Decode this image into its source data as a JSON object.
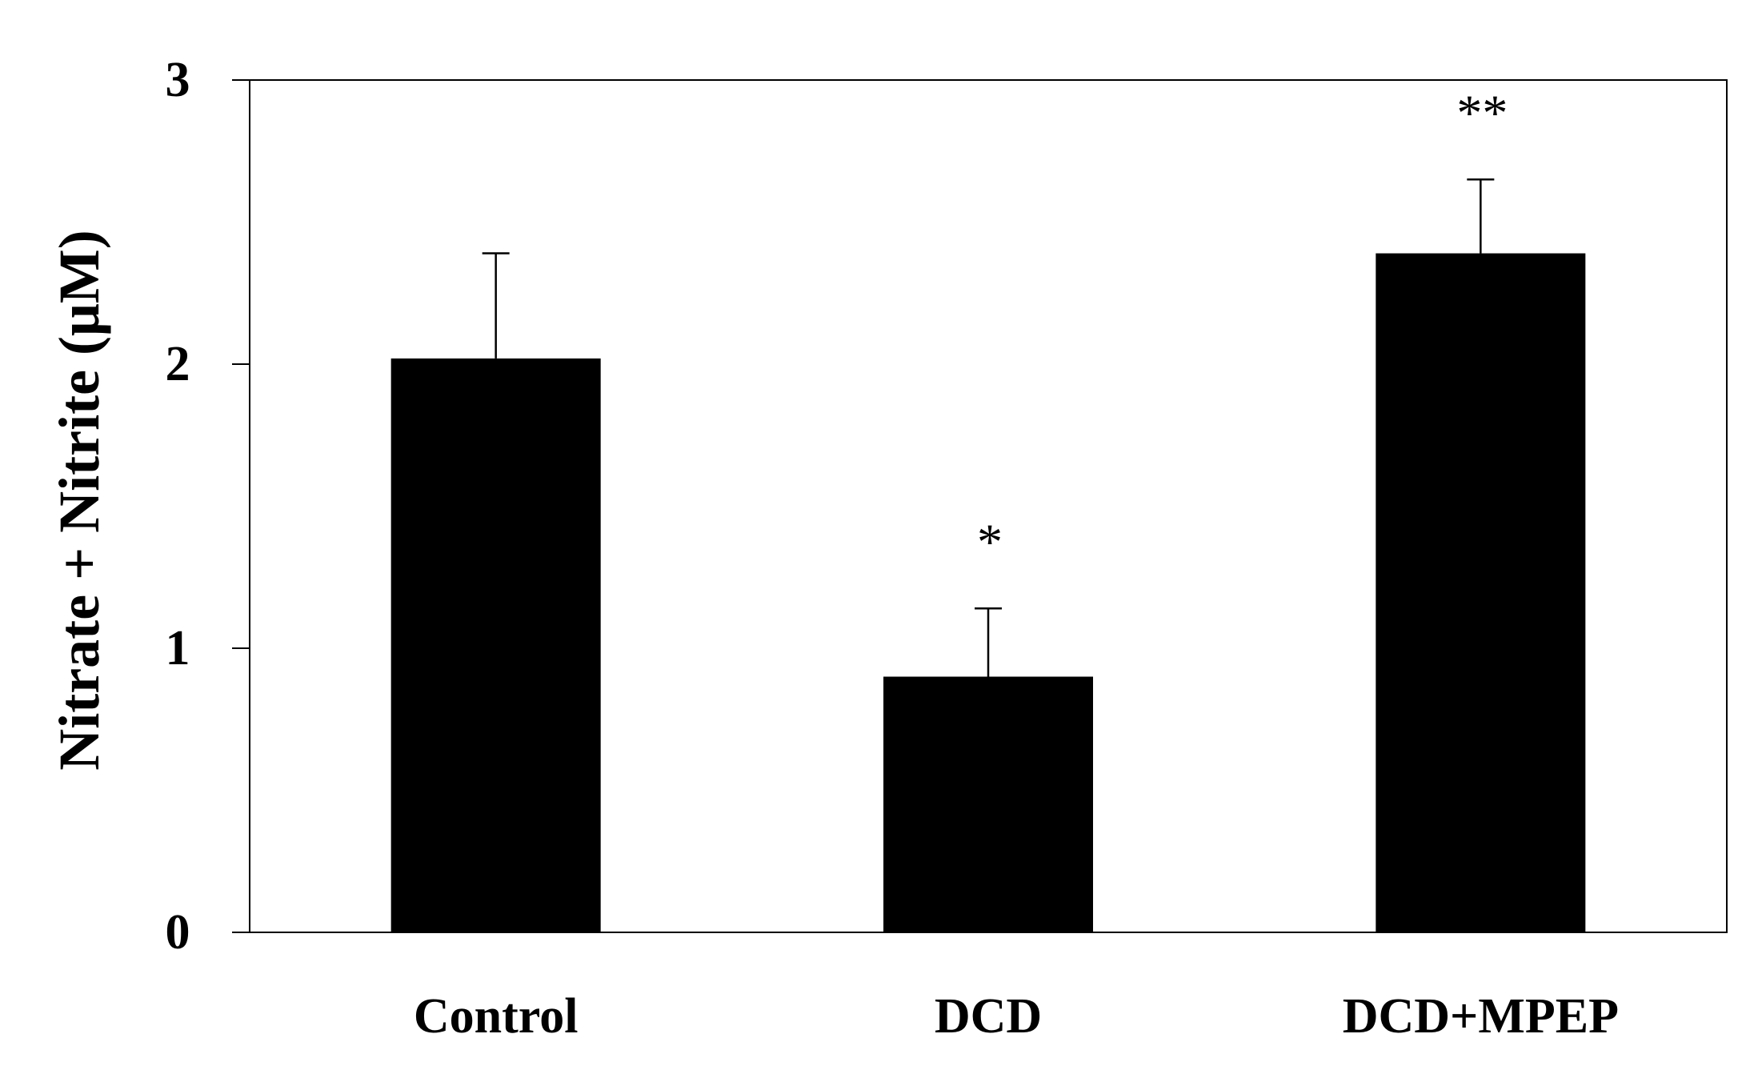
{
  "chart_data": {
    "type": "bar",
    "title": "",
    "xlabel": "",
    "ylabel": "Nitrate + Nitrite (μM)",
    "ylim": [
      0,
      3
    ],
    "yticks": [
      "0",
      "1",
      "2",
      "3"
    ],
    "categories": [
      "Control",
      "DCD",
      "DCD+MPEP"
    ],
    "values": [
      2.02,
      0.9,
      2.39
    ],
    "errors": [
      0.37,
      0.24,
      0.26
    ],
    "annotations": [
      "",
      "*",
      "**"
    ],
    "bar_color": "#000000",
    "grid": false,
    "legend": "none"
  }
}
